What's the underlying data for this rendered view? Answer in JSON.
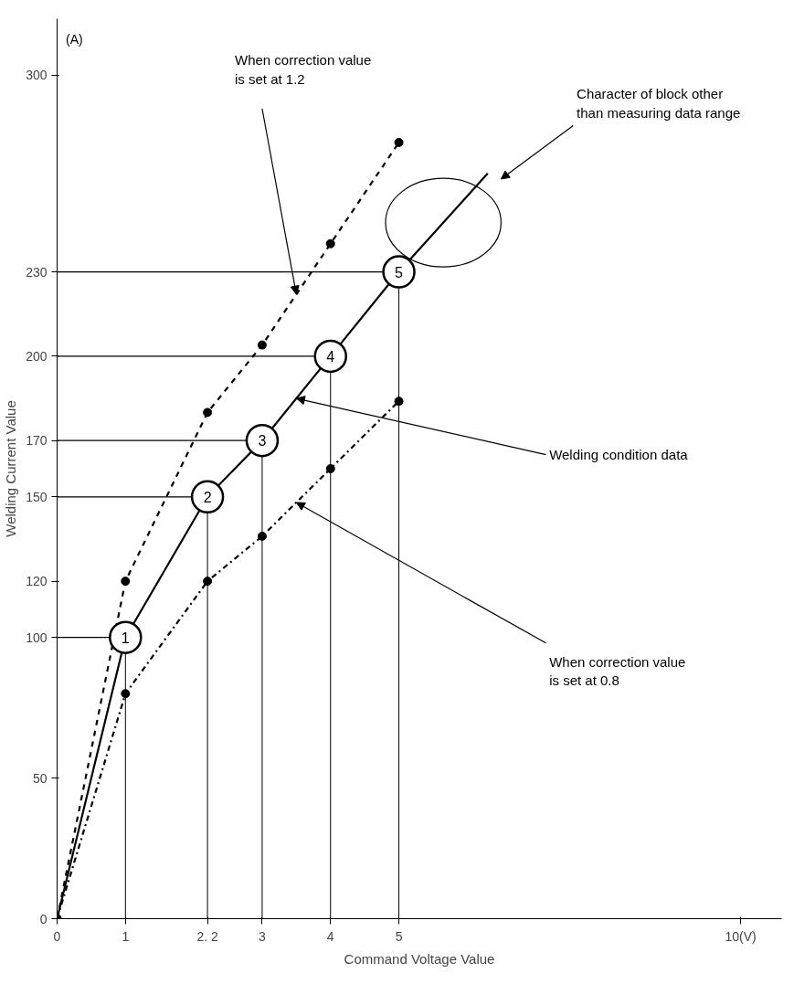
{
  "chart_data": {
    "type": "line",
    "xlabel": "Command Voltage Value",
    "ylabel": "Welding Current Value",
    "xlim": [
      0,
      10.6
    ],
    "ylim": [
      0,
      320
    ],
    "xticks": [
      0,
      1,
      {
        "value": 2.2,
        "label": "2. 2"
      },
      3,
      4,
      5,
      {
        "value": 10,
        "label": "10(V)"
      }
    ],
    "yticks": [
      0,
      50,
      100,
      120,
      150,
      170,
      200,
      230,
      300
    ],
    "series": [
      {
        "color": "#000000",
        "line_style": "solid",
        "marker": "circle",
        "x": [
          1,
          2.2,
          3,
          4,
          5
        ],
        "values": [
          100,
          150,
          170,
          200,
          230
        ]
      },
      {
        "color": "#000000",
        "line_style": "dashed",
        "marker": "circle",
        "x": [
          0,
          1,
          2.2,
          3,
          4,
          5
        ],
        "values": [
          0,
          120,
          180,
          204,
          240,
          276
        ]
      },
      {
        "color": "#000000",
        "line_style": "dashdot",
        "marker": "circle",
        "x": [
          0,
          1,
          2.2,
          3,
          4,
          5
        ],
        "values": [
          0,
          80,
          120,
          136,
          160,
          184
        ]
      },
      {
        "color": "#000000",
        "line_style": "solid",
        "x": [
          0,
          1,
          null,
          5,
          6.3
        ],
        "values": [
          0,
          100,
          null,
          230,
          265
        ]
      }
    ],
    "annotations": [
      "(A)",
      "When correction value\nis set at 1.2",
      "Character of block other\nthan measuring data range",
      {
        "text": "Welding condition data",
        "x": 3.5,
        "y": 185
      },
      {
        "text": "When correction value\nis set at 0.8",
        "x": 3.5,
        "y": 148
      },
      {
        "text": "1",
        "x": 1,
        "y": 100
      },
      {
        "text": "2",
        "x": 2.2,
        "y": 150
      },
      {
        "text": "3",
        "x": 3,
        "y": 170
      },
      {
        "text": "4",
        "x": 4,
        "y": 200
      },
      {
        "text": "5",
        "x": 5,
        "y": 230
      }
    ]
  }
}
